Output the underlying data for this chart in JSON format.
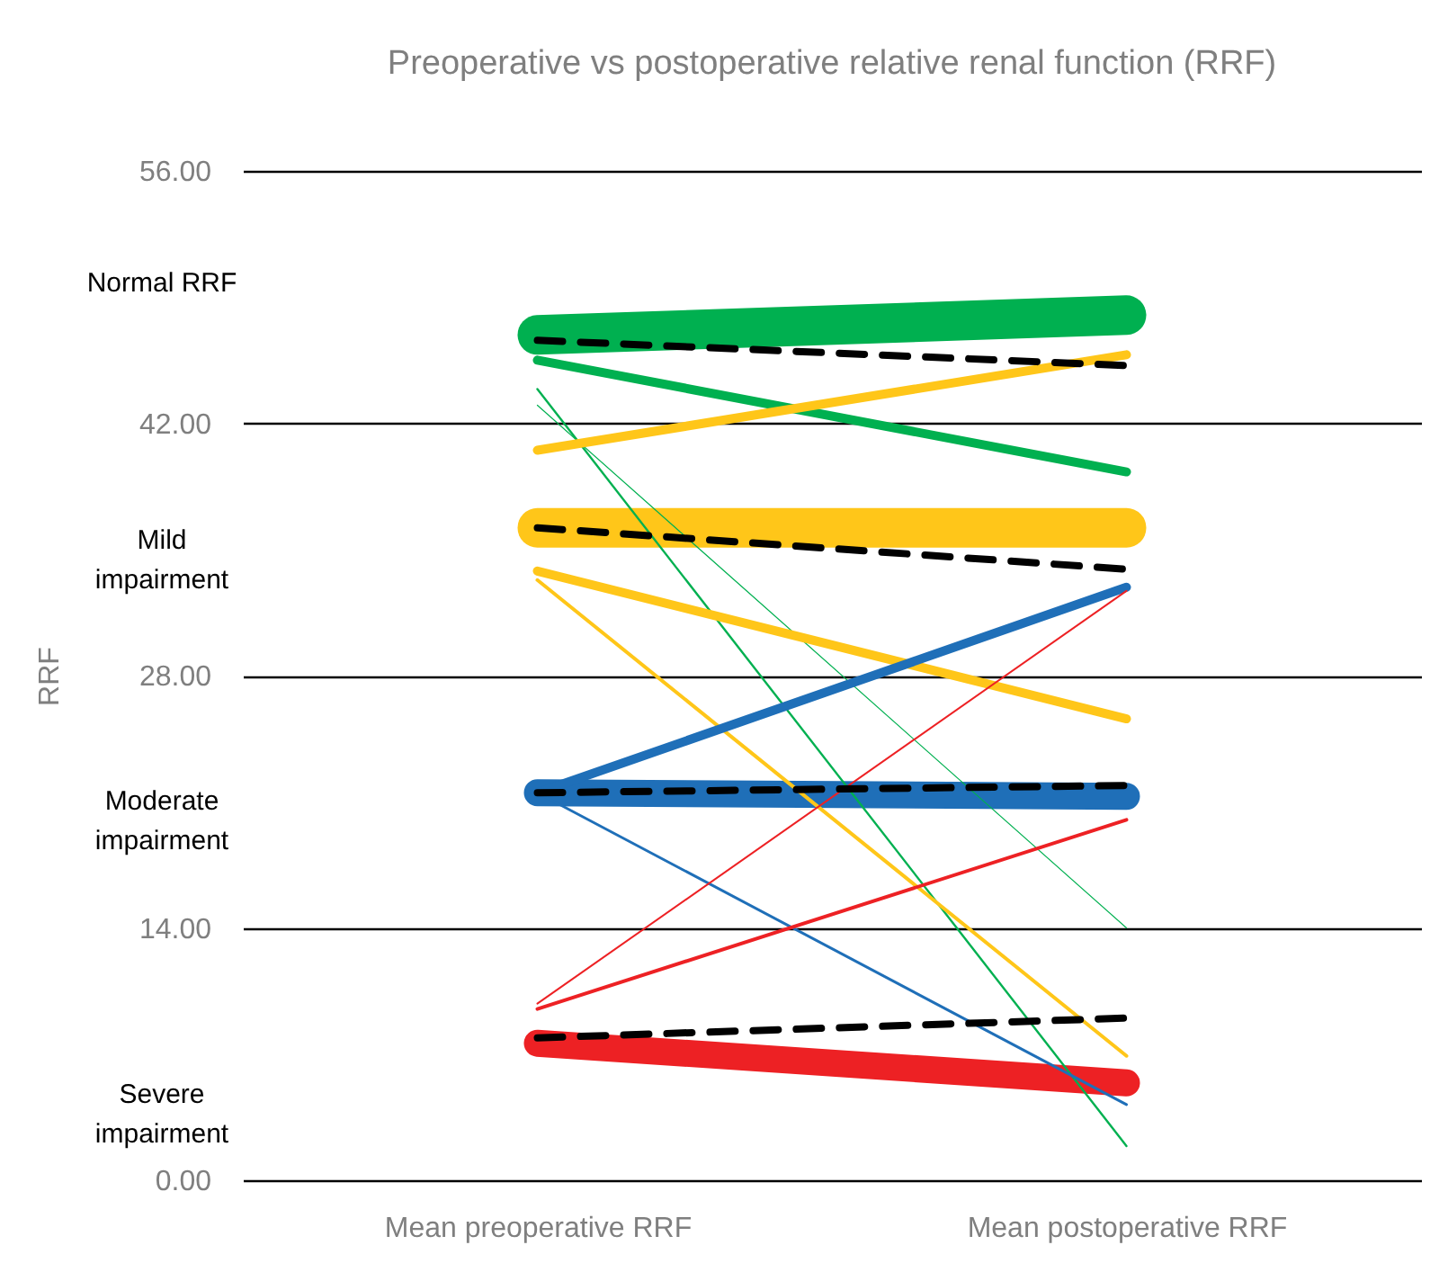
{
  "chart_data": {
    "type": "line",
    "title": "Preoperative vs postoperative relative renal function (RRF)",
    "ylabel": "RRF",
    "categories": [
      "Mean preoperative RRF",
      "Mean postoperative RRF"
    ],
    "series": [
      {
        "color": "#00b050",
        "values": [
          46.9,
          48.0
        ]
      },
      {
        "color": "#ffc619",
        "values": [
          36.2,
          36.2
        ]
      },
      {
        "color": "#1f6fb8",
        "values": [
          21.5,
          21.3
        ]
      },
      {
        "color": "#ed2124",
        "values": [
          7.6,
          5.4
        ]
      },
      {
        "color": "#00b050",
        "values": [
          45.5,
          39.3
        ]
      },
      {
        "color": "#00b050",
        "values": [
          43.9,
          1.9
        ]
      },
      {
        "color": "#00b050",
        "values": [
          43.0,
          14.0
        ]
      },
      {
        "color": "#ffc619",
        "values": [
          40.5,
          45.8
        ]
      },
      {
        "color": "#ffc619",
        "values": [
          33.8,
          25.6
        ]
      },
      {
        "color": "#ffc619",
        "values": [
          33.3,
          6.9
        ]
      },
      {
        "color": "#1f6fb8",
        "values": [
          21.5,
          32.9
        ]
      },
      {
        "color": "#1f6fb8",
        "values": [
          21.5,
          4.2
        ]
      },
      {
        "color": "#ed2124",
        "values": [
          9.8,
          32.7
        ]
      },
      {
        "color": "#ed2124",
        "values": [
          9.5,
          20.0
        ]
      },
      {
        "color": "#000000",
        "line_style": "dashed",
        "values": [
          46.6,
          45.2
        ]
      },
      {
        "color": "#000000",
        "line_style": "dashed",
        "values": [
          36.2,
          33.9
        ]
      },
      {
        "color": "#000000",
        "line_style": "dashed",
        "values": [
          21.5,
          21.9
        ]
      },
      {
        "color": "#000000",
        "line_style": "dashed",
        "values": [
          7.9,
          9.0
        ]
      }
    ],
    "ylim": [
      0,
      56
    ],
    "yticks": [
      {
        "value": 0,
        "label": "0.00"
      },
      {
        "value": 14,
        "label": "14.00"
      },
      {
        "value": 28,
        "label": "28.00"
      },
      {
        "value": 42,
        "label": "42.00"
      },
      {
        "value": 56,
        "label": "56.00"
      }
    ],
    "grid": "y",
    "annotations": [
      "Normal RRF",
      "Mild\nimpairment",
      "Moderate\nimpairment",
      "Severe\nimpairment"
    ]
  }
}
